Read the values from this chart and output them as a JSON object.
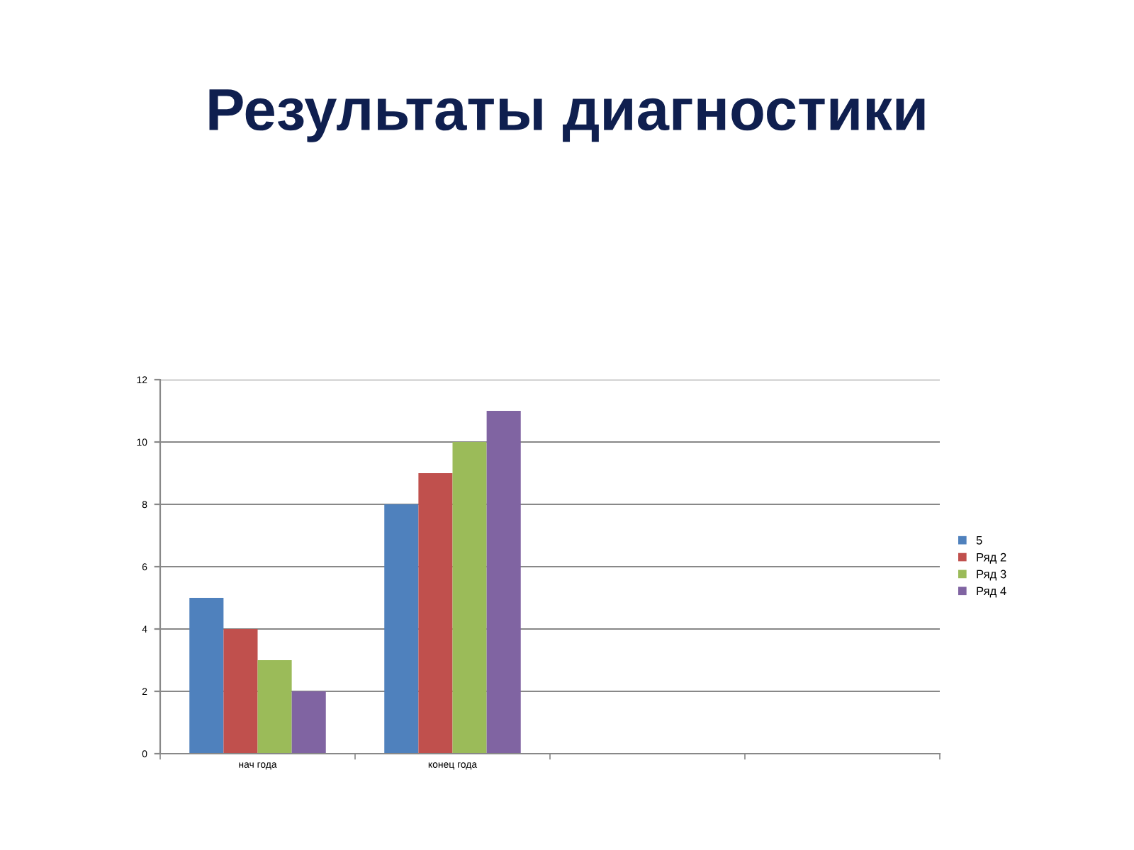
{
  "chart_data": {
    "type": "bar",
    "title": "Результаты диагностики",
    "categories": [
      "нач года",
      "конец года",
      null,
      null
    ],
    "series": [
      {
        "name": "5",
        "color": "#4f81bd",
        "values": [
          5,
          8,
          null,
          null
        ]
      },
      {
        "name": "Ряд 2",
        "color": "#c0504d",
        "values": [
          4,
          9,
          null,
          null
        ]
      },
      {
        "name": "Ряд 3",
        "color": "#9bbb59",
        "values": [
          3,
          10,
          null,
          null
        ]
      },
      {
        "name": "Ряд 4",
        "color": "#8064a2",
        "values": [
          2,
          11,
          null,
          null
        ]
      }
    ],
    "ylim": [
      0,
      12
    ],
    "yticks": [
      0,
      2,
      4,
      6,
      8,
      10,
      12
    ],
    "grid": "y",
    "legend": "right"
  }
}
